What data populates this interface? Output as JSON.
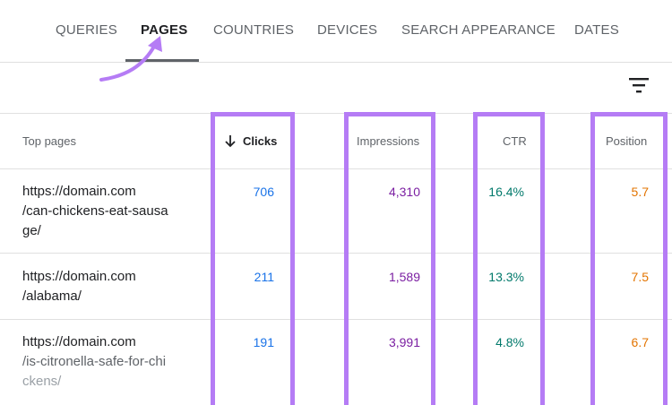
{
  "tabs": [
    {
      "label": "QUERIES"
    },
    {
      "label": "PAGES"
    },
    {
      "label": "COUNTRIES"
    },
    {
      "label": "DEVICES"
    },
    {
      "label": "SEARCH APPEARANCE"
    },
    {
      "label": "DATES"
    }
  ],
  "active_tab": "PAGES",
  "table": {
    "headers": {
      "page": "Top pages",
      "clicks": "Clicks",
      "impressions": "Impressions",
      "ctr": "CTR",
      "position": "Position"
    },
    "sorted_by": "Clicks",
    "rows": [
      {
        "url_line1": "https://domain.com",
        "url_line2": "/can-chickens-eat-sausa",
        "url_line3": "ge/",
        "clicks": "706",
        "impressions": "4,310",
        "ctr": "16.4%",
        "position": "5.7"
      },
      {
        "url_line1": "https://domain.com",
        "url_line2": "/alabama/",
        "url_line3": "",
        "clicks": "211",
        "impressions": "1,589",
        "ctr": "13.3%",
        "position": "7.5"
      },
      {
        "url_line1": "https://domain.com",
        "url_line2": "/is-citronella-safe-for-chi",
        "url_line3": "ckens/",
        "clicks": "191",
        "impressions": "3,991",
        "ctr": "4.8%",
        "position": "6.7"
      }
    ]
  },
  "colors": {
    "highlight": "#b57cf5",
    "clicks": "#1a73e8",
    "impressions": "#7b1fa2",
    "ctr": "#00796b",
    "position": "#e37400"
  },
  "icons": [
    "filter-icon",
    "sort-arrow-down-icon",
    "annotation-arrow-icon"
  ]
}
